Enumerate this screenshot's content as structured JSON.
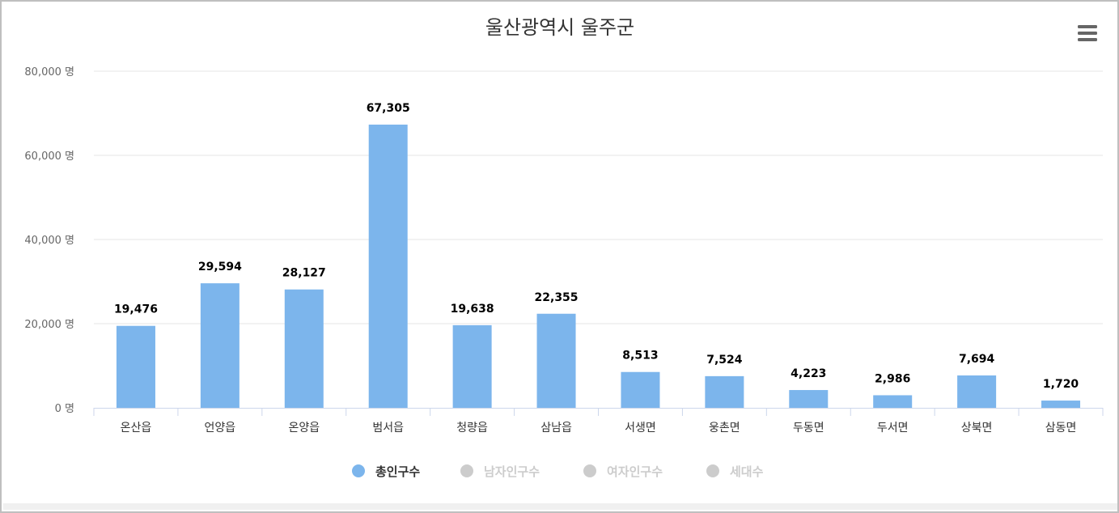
{
  "chart_data": {
    "type": "bar",
    "title": "울산광역시 울주군",
    "categories": [
      "온산읍",
      "언양읍",
      "온양읍",
      "범서읍",
      "청량읍",
      "삼남읍",
      "서생면",
      "웅촌면",
      "두동면",
      "두서면",
      "상북면",
      "삼동면"
    ],
    "series": [
      {
        "name": "총인구수",
        "values": [
          19476,
          29594,
          28127,
          67305,
          19638,
          22355,
          8513,
          7524,
          4223,
          2986,
          7694,
          1720
        ],
        "data_labels": [
          "19,476",
          "29,594",
          "28,127",
          "67,305",
          "19,638",
          "22,355",
          "8,513",
          "7,524",
          "4,223",
          "2,986",
          "7,694",
          "1,720"
        ],
        "color": "#7cb5ec",
        "visible": true
      }
    ],
    "legend": [
      {
        "name": "총인구수",
        "active": true,
        "color": "#7cb5ec"
      },
      {
        "name": "남자인구수",
        "active": false,
        "color": "#cccccc"
      },
      {
        "name": "여자인구수",
        "active": false,
        "color": "#cccccc"
      },
      {
        "name": "세대수",
        "active": false,
        "color": "#cccccc"
      }
    ],
    "legend_position": "bottom-center",
    "ylim": [
      0,
      80000
    ],
    "yticks": [
      0,
      20000,
      40000,
      60000,
      80000
    ],
    "ytick_labels": [
      "0 명",
      "20,000 명",
      "40,000 명",
      "60,000 명",
      "80,000 명"
    ],
    "grid": true
  },
  "menu_icon": "hamburger-menu-icon",
  "colors": {
    "grid": "#e6e6e6",
    "axis": "#ccd6eb",
    "legend_inactive_text": "#cccccc",
    "legend_active_text": "#333333"
  }
}
